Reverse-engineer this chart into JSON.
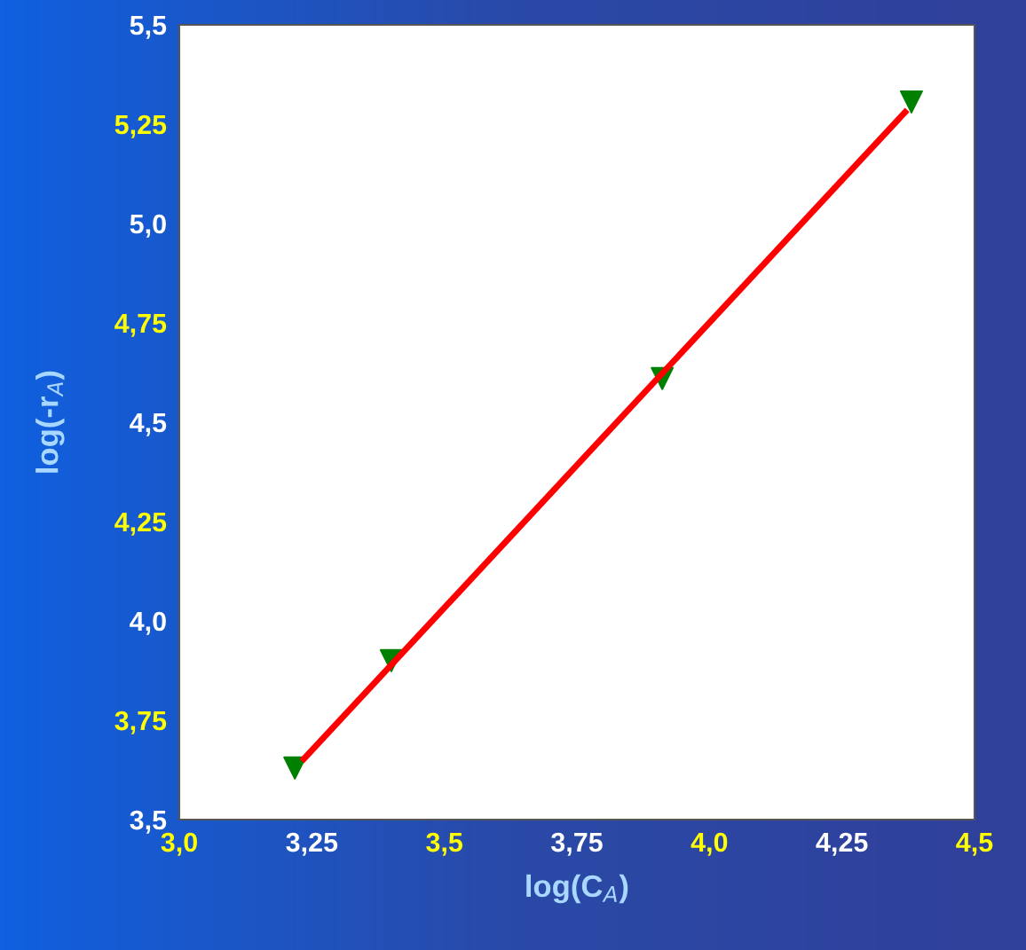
{
  "chart_data": {
    "type": "scatter",
    "xlabel": "log(C$_{A}$)",
    "ylabel": "log(-r$_{A}$)",
    "x": [
      3.218,
      3.4,
      3.911,
      4.381
    ],
    "series": [
      {
        "color": "#008000",
        "marker": "triangle",
        "values": [
          3.63,
          3.9,
          4.61,
          5.306
        ]
      },
      {
        "type": "line",
        "color": "#ff0000",
        "x": [
          3.231,
          4.373
        ],
        "values": [
          3.647,
          5.286
        ],
        "marker": "none",
        "line_style": "solid"
      }
    ],
    "xlim": [
      3.0,
      4.5
    ],
    "ylim": [
      3.5,
      5.5
    ],
    "xticks": [
      {
        "value": 3.0,
        "label": "3,0"
      },
      {
        "value": 3.25,
        "label": "3,25"
      },
      {
        "value": 3.5,
        "label": "3,5"
      },
      {
        "value": 3.75,
        "label": "3,75"
      },
      {
        "value": 4.0,
        "label": "4,0"
      },
      {
        "value": 4.25,
        "label": "4,25"
      },
      {
        "value": 4.5,
        "label": "4,5"
      }
    ],
    "yticks": [
      {
        "value": 3.5,
        "label": "3,5"
      },
      {
        "value": 3.75,
        "label": "3,75"
      },
      {
        "value": 4.0,
        "label": "4,0"
      },
      {
        "value": 4.25,
        "label": "4,25"
      },
      {
        "value": 4.5,
        "label": "4,5"
      },
      {
        "value": 4.75,
        "label": "4,75"
      },
      {
        "value": 5.0,
        "label": "5,0"
      },
      {
        "value": 5.25,
        "label": "5,25"
      },
      {
        "value": 5.5,
        "label": "5,5"
      }
    ],
    "grid": false,
    "legend": false
  }
}
